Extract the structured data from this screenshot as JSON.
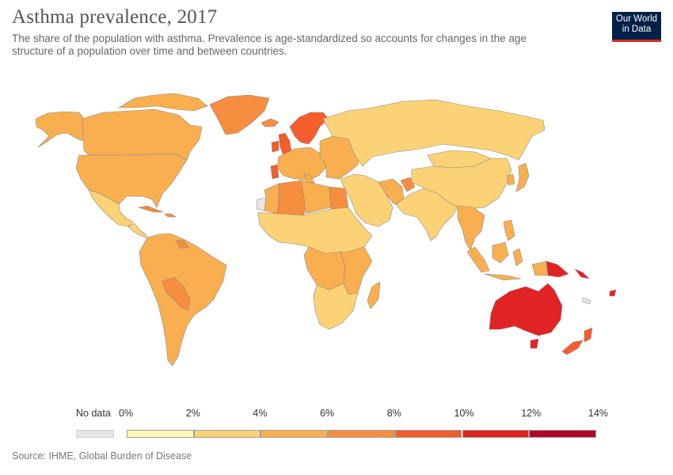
{
  "header": {
    "title": "Asthma prevalence, 2017",
    "subtitle": "The share of the population with asthma. Prevalence is age-standardized so accounts for changes in the age structure of a population over time and between countries."
  },
  "logo": {
    "line1": "Our World",
    "line2": "in Data"
  },
  "legend": {
    "no_data_label": "No data",
    "no_data_color": "#e6e6e6",
    "ticks": [
      "0%",
      "2%",
      "4%",
      "6%",
      "8%",
      "10%",
      "12%",
      "14%"
    ],
    "bins": [
      {
        "from": 0,
        "to": 2,
        "color": "#fefbb9"
      },
      {
        "from": 2,
        "to": 4,
        "color": "#fcd276"
      },
      {
        "from": 4,
        "to": 6,
        "color": "#f9af4f"
      },
      {
        "from": 6,
        "to": 8,
        "color": "#f68d3f"
      },
      {
        "from": 8,
        "to": 10,
        "color": "#f45d2c"
      },
      {
        "from": 10,
        "to": 12,
        "color": "#e22324"
      },
      {
        "from": 12,
        "to": 14,
        "color": "#b2032b"
      }
    ]
  },
  "regions": {
    "canada": "#f9af4f",
    "alaska": "#f9af4f",
    "usa": "#f9af4f",
    "greenland": "#f68d3f",
    "mexico": "#fcd276",
    "central_america": "#fcd276",
    "cuba": "#f68d3f",
    "south_america": "#f9af4f",
    "bolivia_paraguay": "#f68d3f",
    "guyana": "#f68d3f",
    "uk": "#f45d2c",
    "ireland": "#f45d2c",
    "iceland": "#f68d3f",
    "scandinavia": "#f45d2c",
    "western_europe": "#f9af4f",
    "portugal": "#f45d2c",
    "eastern_europe": "#f9af4f",
    "russia": "#fcd276",
    "middle_east": "#fcd276",
    "iran": "#f9af4f",
    "afghanistan": "#f68d3f",
    "north_africa_west": "#f9af4f",
    "algeria": "#f68d3f",
    "egypt": "#f68d3f",
    "sub_saharan_africa": "#fcd276",
    "central_africa": "#f9af4f",
    "east_africa": "#f9af4f",
    "southern_africa": "#fcd276",
    "madagascar": "#f9af4f",
    "western_sahara": "#e6e6e6",
    "south_asia": "#fcd276",
    "china": "#fcd276",
    "mongolia": "#fcd276",
    "japan": "#f9af4f",
    "southeast_asia": "#f9af4f",
    "indonesia": "#f9af4f",
    "philippines": "#f9af4f",
    "papua_new_guinea": "#e22324",
    "papua_indonesia": "#f9af4f",
    "australia": "#e22324",
    "new_zealand": "#f45d2c",
    "pacific_islands": "#e22324",
    "new_caledonia": "#e6e6e6"
  },
  "footer": {
    "source": "Source: IHME, Global Burden of Disease"
  }
}
